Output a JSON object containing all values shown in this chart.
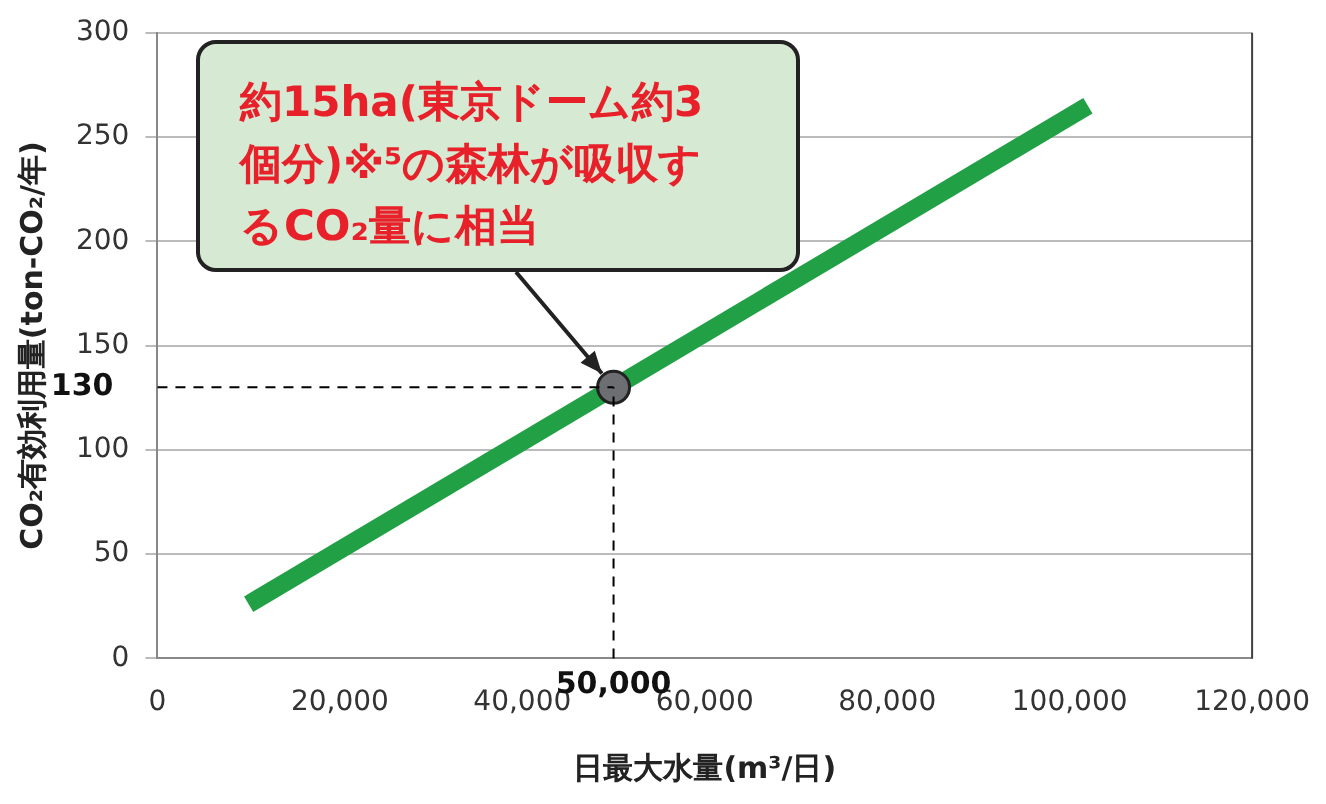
{
  "chart_data": {
    "type": "line",
    "xlabel": "日最大水量(m³/日)",
    "ylabel": "CO₂有効利用量(ton-CO₂/年)",
    "x": [
      10000,
      102000
    ],
    "series": [
      {
        "color": "#21a045",
        "values": [
          26,
          265
        ]
      },
      {
        "type": "scatter",
        "color": "#6d6e71",
        "marker": "circle",
        "x": [
          50000
        ],
        "values": [
          130
        ]
      }
    ],
    "xlim": [
      0,
      120000
    ],
    "ylim": [
      0,
      300
    ],
    "xticks": [
      0,
      {
        "value": 20000,
        "label": "20,000"
      },
      {
        "value": 40000,
        "label": "40,000"
      },
      {
        "value": 60000,
        "label": "60,000"
      },
      {
        "value": 80000,
        "label": "80,000"
      },
      {
        "value": 100000,
        "label": "100,000"
      },
      {
        "value": 120000,
        "label": "120,000"
      }
    ],
    "yticks": [
      0,
      50,
      100,
      150,
      200,
      250,
      300
    ],
    "grid": "y",
    "legend": false,
    "line_style": "solid",
    "ref_lines": [
      {
        "axis": "x",
        "value": 50000,
        "label": "50,000",
        "line_style": "dashed",
        "color": "#000000"
      },
      {
        "axis": "y",
        "value": 130,
        "label": "130",
        "line_style": "dashed",
        "color": "#000000"
      }
    ],
    "annotations": [
      {
        "text": "約15ha(東京ドーム約3個分)※⁵の森林が吸収するCO₂量に相当",
        "x": 50000,
        "y": 130
      }
    ]
  }
}
